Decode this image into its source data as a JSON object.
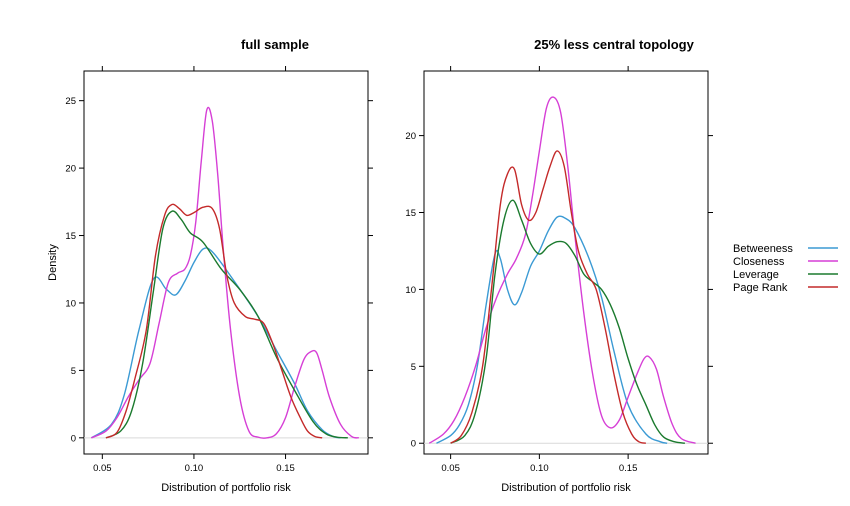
{
  "chart_data": [
    {
      "type": "line",
      "title": "full sample",
      "xlabel": "Distribution of portfolio risk",
      "ylabel": "Density",
      "xlim": [
        0.04,
        0.195
      ],
      "ylim": [
        -1.2,
        27.2
      ],
      "xticks": [
        0.05,
        0.1,
        0.15
      ],
      "xtick_labels": [
        "0.05",
        "0.10",
        "0.15"
      ],
      "yticks": [
        0,
        5,
        10,
        15,
        20,
        25
      ],
      "ytick_labels": [
        "0",
        "5",
        "10",
        "15",
        "20",
        "25"
      ],
      "zero_line": true,
      "series": [
        {
          "name": "Betweeness",
          "color": "#3b9ad4",
          "x": [
            0.044,
            0.055,
            0.062,
            0.07,
            0.078,
            0.085,
            0.09,
            0.095,
            0.1,
            0.105,
            0.11,
            0.12,
            0.135,
            0.145,
            0.155,
            0.162,
            0.17,
            0.176,
            0.18
          ],
          "y": [
            0.0,
            1.0,
            3.2,
            8.0,
            11.8,
            11.0,
            10.6,
            11.6,
            13.0,
            14.0,
            13.8,
            12.0,
            9.0,
            6.5,
            4.0,
            2.0,
            0.6,
            0.1,
            0.0
          ]
        },
        {
          "name": "Closeness",
          "color": "#d63fd6",
          "x": [
            0.044,
            0.052,
            0.058,
            0.064,
            0.07,
            0.076,
            0.081,
            0.086,
            0.091,
            0.095,
            0.098,
            0.101,
            0.104,
            0.107,
            0.11,
            0.113,
            0.116,
            0.12,
            0.125,
            0.13,
            0.135,
            0.14,
            0.145,
            0.15,
            0.155,
            0.16,
            0.164,
            0.167,
            0.17,
            0.174,
            0.18,
            0.186,
            0.19
          ],
          "y": [
            0.0,
            0.5,
            1.5,
            3.0,
            4.3,
            5.5,
            8.5,
            11.5,
            12.2,
            12.5,
            13.5,
            16.0,
            20.5,
            24.3,
            23.5,
            19.5,
            14.0,
            8.0,
            3.0,
            0.5,
            0.05,
            0.0,
            0.3,
            1.5,
            3.8,
            5.8,
            6.4,
            6.3,
            5.0,
            3.0,
            1.0,
            0.1,
            0.0
          ]
        },
        {
          "name": "Leverage",
          "color": "#1b7a2e",
          "x": [
            0.052,
            0.06,
            0.066,
            0.072,
            0.078,
            0.083,
            0.088,
            0.093,
            0.098,
            0.105,
            0.115,
            0.125,
            0.135,
            0.145,
            0.155,
            0.165,
            0.172,
            0.178,
            0.184
          ],
          "y": [
            0.0,
            0.5,
            2.0,
            5.5,
            11.0,
            15.5,
            16.8,
            16.2,
            15.2,
            14.5,
            12.5,
            11.0,
            9.0,
            6.0,
            3.5,
            1.2,
            0.3,
            0.05,
            0.0
          ]
        },
        {
          "name": "Page Rank",
          "color": "#c42a2a",
          "x": [
            0.052,
            0.058,
            0.063,
            0.068,
            0.074,
            0.079,
            0.084,
            0.088,
            0.092,
            0.096,
            0.1,
            0.105,
            0.11,
            0.114,
            0.118,
            0.122,
            0.128,
            0.133,
            0.138,
            0.143,
            0.148,
            0.153,
            0.158,
            0.162,
            0.166,
            0.17
          ],
          "y": [
            0.0,
            0.4,
            2.0,
            4.5,
            8.0,
            13.5,
            16.5,
            17.3,
            17.0,
            16.5,
            16.7,
            17.1,
            17.0,
            15.5,
            12.0,
            10.0,
            9.0,
            8.8,
            8.5,
            7.0,
            5.0,
            3.0,
            1.5,
            0.5,
            0.1,
            0.0
          ]
        }
      ]
    },
    {
      "type": "line",
      "title": "25% less central topology",
      "xlabel": "Distribution of portfolio risk",
      "ylabel": "",
      "xlim": [
        0.035,
        0.195
      ],
      "ylim": [
        -0.7,
        24.2
      ],
      "xticks": [
        0.05,
        0.1,
        0.15
      ],
      "xtick_labels": [
        "0.05",
        "0.10",
        "0.15"
      ],
      "yticks": [
        0,
        5,
        10,
        15,
        20
      ],
      "ytick_labels": [
        "0",
        "5",
        "10",
        "15",
        "20"
      ],
      "zero_line": true,
      "series": [
        {
          "name": "Betweeness",
          "color": "#3b9ad4",
          "x": [
            0.042,
            0.05,
            0.055,
            0.06,
            0.065,
            0.07,
            0.075,
            0.078,
            0.082,
            0.086,
            0.09,
            0.095,
            0.1,
            0.105,
            0.11,
            0.115,
            0.12,
            0.128,
            0.135,
            0.142,
            0.15,
            0.16,
            0.168,
            0.172
          ],
          "y": [
            0.0,
            0.5,
            1.2,
            2.5,
            5.0,
            9.0,
            12.3,
            12.0,
            10.0,
            9.0,
            9.8,
            11.5,
            12.5,
            13.8,
            14.7,
            14.6,
            14.0,
            12.0,
            9.5,
            6.0,
            2.5,
            0.6,
            0.1,
            0.0
          ]
        },
        {
          "name": "Closeness",
          "color": "#d63fd6",
          "x": [
            0.038,
            0.046,
            0.052,
            0.058,
            0.064,
            0.07,
            0.076,
            0.082,
            0.087,
            0.092,
            0.096,
            0.1,
            0.104,
            0.108,
            0.112,
            0.116,
            0.12,
            0.125,
            0.13,
            0.135,
            0.14,
            0.145,
            0.15,
            0.155,
            0.159,
            0.162,
            0.166,
            0.17,
            0.175,
            0.18,
            0.188
          ],
          "y": [
            0.0,
            0.6,
            1.5,
            3.0,
            5.0,
            7.5,
            9.5,
            11.0,
            12.0,
            13.5,
            16.0,
            19.0,
            21.8,
            22.5,
            21.5,
            18.0,
            13.5,
            8.5,
            4.5,
            1.8,
            1.0,
            1.5,
            3.0,
            4.5,
            5.5,
            5.6,
            4.8,
            3.0,
            1.2,
            0.3,
            0.0
          ]
        },
        {
          "name": "Leverage",
          "color": "#1b7a2e",
          "x": [
            0.05,
            0.058,
            0.064,
            0.07,
            0.075,
            0.08,
            0.085,
            0.09,
            0.095,
            0.1,
            0.105,
            0.11,
            0.115,
            0.12,
            0.125,
            0.13,
            0.135,
            0.14,
            0.145,
            0.15,
            0.155,
            0.16,
            0.165,
            0.17,
            0.176,
            0.182
          ],
          "y": [
            0.0,
            0.5,
            2.0,
            5.5,
            11.0,
            14.5,
            15.8,
            14.5,
            13.0,
            12.3,
            12.8,
            13.1,
            13.0,
            12.2,
            11.0,
            10.5,
            10.0,
            9.0,
            7.5,
            5.5,
            3.8,
            2.5,
            1.2,
            0.4,
            0.1,
            0.0
          ]
        },
        {
          "name": "Page Rank",
          "color": "#c42a2a",
          "x": [
            0.05,
            0.056,
            0.062,
            0.068,
            0.073,
            0.078,
            0.082,
            0.086,
            0.09,
            0.094,
            0.098,
            0.102,
            0.106,
            0.11,
            0.114,
            0.118,
            0.122,
            0.127,
            0.132,
            0.137,
            0.142,
            0.147,
            0.152,
            0.156,
            0.16
          ],
          "y": [
            0.0,
            0.5,
            2.0,
            5.0,
            10.0,
            15.5,
            17.5,
            17.8,
            15.5,
            14.5,
            15.0,
            16.5,
            18.0,
            19.0,
            18.0,
            15.0,
            12.5,
            11.0,
            10.0,
            7.5,
            4.5,
            2.0,
            0.6,
            0.1,
            0.0
          ]
        }
      ]
    }
  ],
  "legend": {
    "placement": "right",
    "items": [
      {
        "label": "Betweeness",
        "color": "#3b9ad4"
      },
      {
        "label": "Closeness",
        "color": "#d63fd6"
      },
      {
        "label": "Leverage",
        "color": "#1b7a2e"
      },
      {
        "label": "Page Rank",
        "color": "#c42a2a"
      }
    ]
  }
}
